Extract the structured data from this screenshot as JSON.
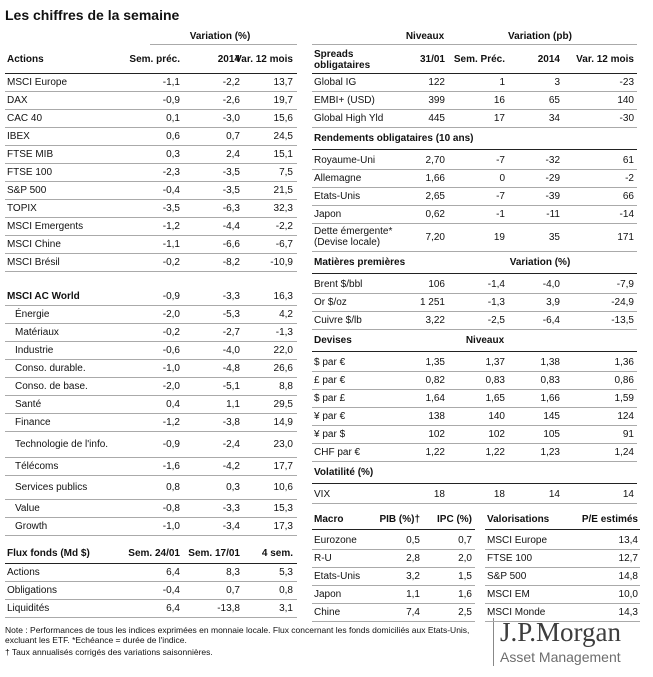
{
  "title": "Les chiffres de la semaine",
  "equities": {
    "group_header": "Variation (%)",
    "columns": [
      "Actions",
      "Sem. préc.",
      "2014",
      "Var. 12 mois"
    ],
    "rows": [
      [
        "MSCI Europe",
        "-1,1",
        "-2,2",
        "13,7"
      ],
      [
        "DAX",
        "-0,9",
        "-2,6",
        "19,7"
      ],
      [
        "CAC 40",
        "0,1",
        "-3,0",
        "15,6"
      ],
      [
        "IBEX",
        "0,6",
        "0,7",
        "24,5"
      ],
      [
        "FTSE MIB",
        "0,3",
        "2,4",
        "15,1"
      ],
      [
        "FTSE 100",
        "-2,3",
        "-3,5",
        "7,5"
      ],
      [
        "S&P 500",
        "-0,4",
        "-3,5",
        "21,5"
      ],
      [
        "TOPIX",
        "-3,5",
        "-6,3",
        "32,3"
      ],
      [
        "MSCI Emergents",
        "-1,2",
        "-4,4",
        "-2,2"
      ],
      [
        "MSCI Chine",
        "-1,1",
        "-6,6",
        "-6,7"
      ],
      [
        "MSCI Brésil",
        "-0,2",
        "-8,2",
        "-10,9"
      ]
    ]
  },
  "world": {
    "rows": [
      [
        "MSCI AC World",
        "-0,9",
        "-3,3",
        "16,3"
      ],
      [
        "Énergie",
        "-2,0",
        "-5,3",
        "4,2"
      ],
      [
        "Matériaux",
        "-0,2",
        "-2,7",
        "-1,3"
      ],
      [
        "Industrie",
        "-0,6",
        "-4,0",
        "22,0"
      ],
      [
        "Conso. durable.",
        "-1,0",
        "-4,8",
        "26,6"
      ],
      [
        "Conso. de base.",
        "-2,0",
        "-5,1",
        "8,8"
      ],
      [
        "Santé",
        "0,4",
        "1,1",
        "29,5"
      ],
      [
        "Finance",
        "-1,2",
        "-3,8",
        "14,9"
      ],
      [
        "Technologie de l'info.",
        "-0,9",
        "-2,4",
        "23,0"
      ],
      [
        "Télécoms",
        "-1,6",
        "-4,2",
        "17,7"
      ],
      [
        "Services publics",
        "0,8",
        "0,3",
        "10,6"
      ],
      [
        "Value",
        "-0,8",
        "-3,3",
        "15,3"
      ],
      [
        "Growth",
        "-1,0",
        "-3,4",
        "17,3"
      ]
    ]
  },
  "flows": {
    "columns": [
      "Flux fonds (Md $)",
      "Sem. 24/01",
      "Sem. 17/01",
      "4 sem."
    ],
    "rows": [
      [
        "Actions",
        "6,4",
        "8,3",
        "5,3"
      ],
      [
        "Obligations",
        "-0,4",
        "0,7",
        "0,8"
      ],
      [
        "Liquidités",
        "6,4",
        "-13,8",
        "3,1"
      ]
    ]
  },
  "note": [
    "Note : Performances de tous les indices exprimées en monnaie locale. Flux concernant les fonds domiciliés aux Etats-Unis, excluant les ETF. *Echéance = durée de l'indice.",
    "† Taux annualisés corrigés des variations saisonnières."
  ],
  "spreads": {
    "group_headers": [
      "Niveaux",
      "Variation (pb)"
    ],
    "columns": [
      "Spreads obligataires",
      "31/01",
      "Sem. Préc.",
      "2014",
      "Var. 12 mois"
    ],
    "rows": [
      [
        "Global IG",
        "122",
        "1",
        "3",
        "-23"
      ],
      [
        "EMBI+ (USD)",
        "399",
        "16",
        "65",
        "140"
      ],
      [
        "Global High Yld",
        "445",
        "17",
        "34",
        "-30"
      ]
    ]
  },
  "yields": {
    "title": "Rendements obligataires (10 ans)",
    "rows": [
      [
        "Royaume-Uni",
        "2,70",
        "-7",
        "-32",
        "61"
      ],
      [
        "Allemagne",
        "1,66",
        "0",
        "-29",
        "-2"
      ],
      [
        "Etats-Unis",
        "2,65",
        "-7",
        "-39",
        "66"
      ],
      [
        "Japon",
        "0,62",
        "-1",
        "-11",
        "-14"
      ],
      [
        "Dette émergente* (Devise locale)",
        "7,20",
        "19",
        "35",
        "171"
      ]
    ]
  },
  "commodities": {
    "title": "Matières premières",
    "group_header": "Variation (%)",
    "rows": [
      [
        "Brent $/bbl",
        "106",
        "-1,4",
        "-4,0",
        "-7,9"
      ],
      [
        "Or $/oz",
        "1 251",
        "-1,3",
        "3,9",
        "-24,9"
      ],
      [
        "Cuivre $/lb",
        "3,22",
        "-2,5",
        "-6,4",
        "-13,5"
      ]
    ]
  },
  "currencies": {
    "title": "Devises",
    "group_header": "Niveaux",
    "rows": [
      [
        "$ par €",
        "1,35",
        "1,37",
        "1,38",
        "1,36"
      ],
      [
        "£ par €",
        "0,82",
        "0,83",
        "0,83",
        "0,86"
      ],
      [
        "$ par £",
        "1,64",
        "1,65",
        "1,66",
        "1,59"
      ],
      [
        "¥ par €",
        "138",
        "140",
        "145",
        "124"
      ],
      [
        "¥ par $",
        "102",
        "102",
        "105",
        "91"
      ],
      [
        "CHF par €",
        "1,22",
        "1,22",
        "1,23",
        "1,24"
      ]
    ]
  },
  "volatility": {
    "title": "Volatilité (%)",
    "rows": [
      [
        "VIX",
        "18",
        "18",
        "14",
        "14"
      ]
    ]
  },
  "macro": {
    "columns": [
      "Macro",
      "PIB (%)†",
      "IPC (%)"
    ],
    "rows": [
      [
        "Eurozone",
        "0,5",
        "0,7"
      ],
      [
        "R-U",
        "2,8",
        "2,0"
      ],
      [
        "Etats-Unis",
        "3,2",
        "1,5"
      ],
      [
        "Japon",
        "1,1",
        "1,6"
      ],
      [
        "Chine",
        "7,4",
        "2,5"
      ]
    ]
  },
  "valuations": {
    "columns": [
      "Valorisations",
      "P/E estimés"
    ],
    "rows": [
      [
        "MSCI Europe",
        "13,4"
      ],
      [
        "FTSE 100",
        "12,7"
      ],
      [
        "S&P 500",
        "14,8"
      ],
      [
        "MSCI EM",
        "10,0"
      ],
      [
        "MSCI Monde",
        "14,3"
      ]
    ]
  },
  "logo": {
    "name": "J.P.Morgan",
    "tagline": "Asset Management"
  }
}
